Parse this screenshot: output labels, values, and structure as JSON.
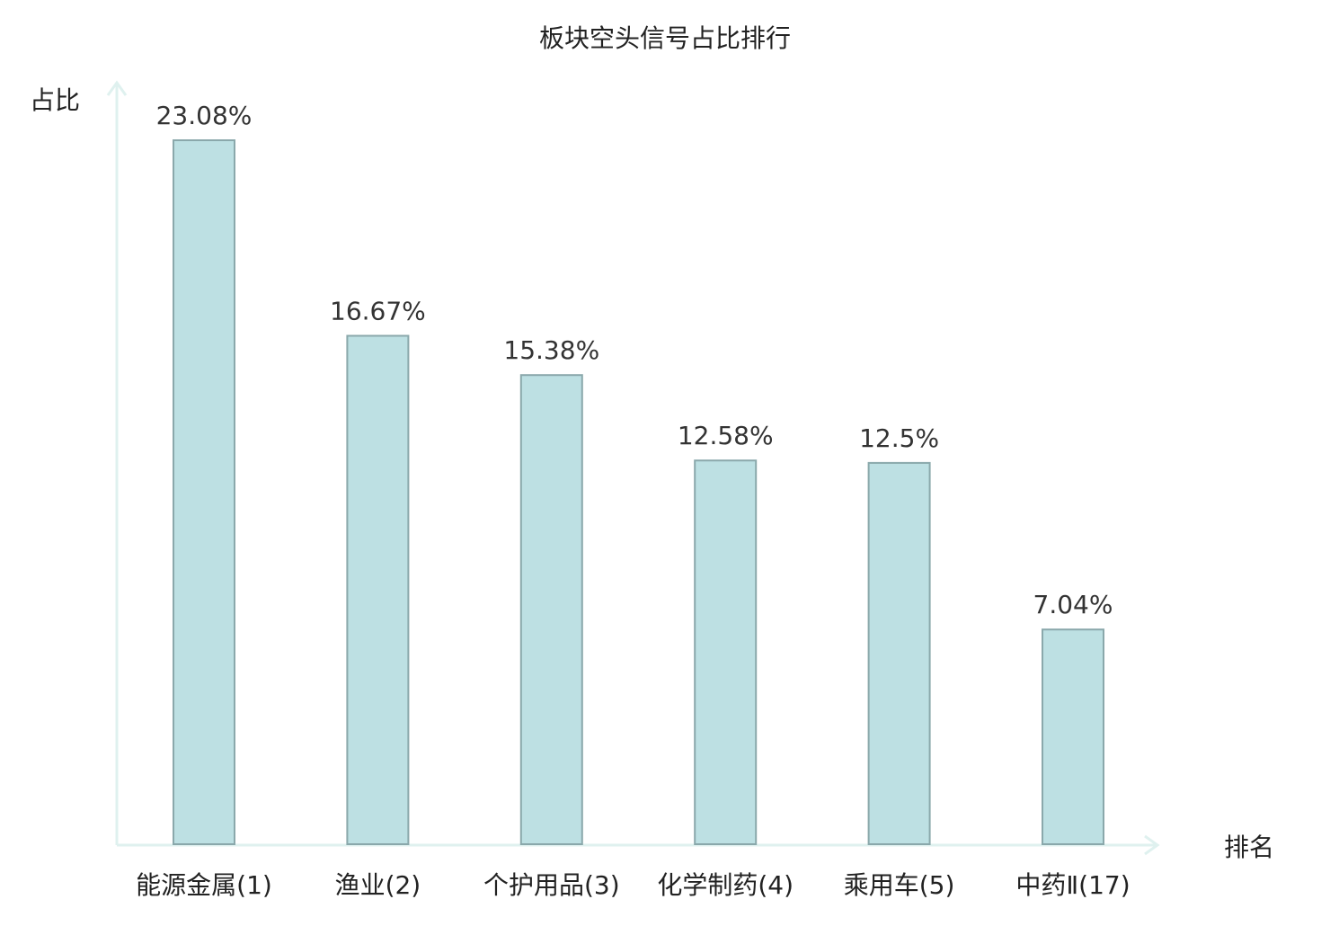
{
  "chart_data": {
    "type": "bar",
    "title": "板块空头信号占比排行",
    "ylabel": "占比",
    "xlabel": "排名",
    "categories": [
      "能源金属(1)",
      "渔业(2)",
      "个护用品(3)",
      "化学制药(4)",
      "乘用车(5)",
      "中药Ⅱ(17)"
    ],
    "values": [
      23.08,
      16.67,
      15.38,
      12.58,
      12.5,
      7.04
    ],
    "value_labels": [
      "23.08%",
      "16.67%",
      "15.38%",
      "12.58%",
      "12.5%",
      "7.04%"
    ],
    "highlight_index": 5,
    "ylim": [
      0,
      25
    ],
    "grid": false,
    "colors": {
      "bar_fill": "#bde0e3",
      "bar_stroke": "#8aa8ab",
      "axis": "#dff1ef",
      "highlight_label": "#e8141c",
      "label": "#222222"
    }
  }
}
